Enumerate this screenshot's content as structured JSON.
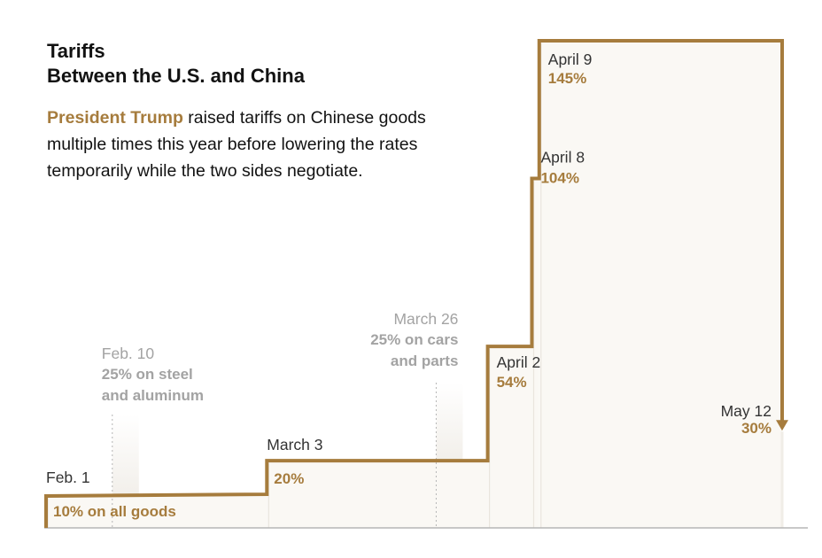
{
  "header": {
    "title_line1": "Tariffs",
    "title_line2": "Between the U.S. and China",
    "dek_highlight": "President Trump",
    "dek_rest": " raised tariffs on Chinese goods multiple times this year before lowering the rates temporarily while the two sides negotiate."
  },
  "colors": {
    "accent": "#a67c3d",
    "fill": "#faf8f4",
    "muted": "#a3a3a3",
    "text": "#121212",
    "axis": "#b5b5b5"
  },
  "chart_data": {
    "type": "step-line",
    "title": "Tariffs Between the U.S. and China",
    "x_unit": "date (2025)",
    "y_unit": "percent tariff",
    "ylim": [
      0,
      145
    ],
    "steps": [
      {
        "date": "2025-02-01",
        "value": 10,
        "date_label": "Feb. 1",
        "value_label": "10% on all goods"
      },
      {
        "date": "2025-03-03",
        "value": 20,
        "date_label": "March 3",
        "value_label": "20%"
      },
      {
        "date": "2025-04-02",
        "value": 54,
        "date_label": "April 2",
        "value_label": "54%"
      },
      {
        "date": "2025-04-08",
        "value": 104,
        "date_label": "April 8",
        "value_label": "104%"
      },
      {
        "date": "2025-04-09",
        "value": 145,
        "date_label": "April 9",
        "value_label": "145%"
      },
      {
        "date": "2025-05-12",
        "value": 30,
        "date_label": "May 12",
        "value_label": "30%"
      }
    ],
    "annotations": [
      {
        "date": "2025-02-10",
        "date_label": "Feb. 10",
        "note_lines": [
          "25% on steel",
          "and aluminum"
        ]
      },
      {
        "date": "2025-03-26",
        "date_label": "March 26",
        "note_lines": [
          "25% on cars",
          "and parts"
        ]
      }
    ]
  }
}
